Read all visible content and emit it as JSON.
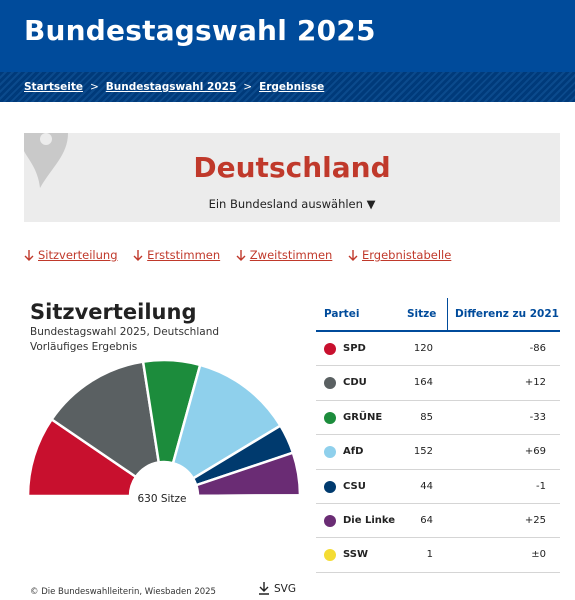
{
  "header": {
    "title": "Bundestagswahl 2025"
  },
  "breadcrumb": [
    {
      "label": "Startseite"
    },
    {
      "label": "Bundestagswahl 2025"
    },
    {
      "label": "Ergebnisse"
    }
  ],
  "breadcrumb_sep": ">",
  "region": {
    "name": "Deutschland",
    "select_label": "Ein Bundesland auswählen",
    "select_caret": "▼"
  },
  "anchors": [
    {
      "label": "Sitzverteilung"
    },
    {
      "label": "Erststimmen"
    },
    {
      "label": "Zweitstimmen"
    },
    {
      "label": "Ergebnistabelle"
    }
  ],
  "chart": {
    "title": "Sitzverteilung",
    "subtitle_line1": "Bundestagswahl 2025, Deutschland",
    "subtitle_line2": "Vorläufiges Ergebnis",
    "total_label": "630 Sitze",
    "credit": "© Die Bundeswahlleiterin, Wiesbaden 2025",
    "download_label": "SVG"
  },
  "table": {
    "headers": {
      "party": "Partei",
      "seats": "Sitze",
      "diff": "Differenz zu 2021"
    },
    "rows": [
      {
        "party": "SPD",
        "seats": "120",
        "diff": "-86",
        "color": "#c8102e"
      },
      {
        "party": "CDU",
        "seats": "164",
        "diff": "+12",
        "color": "#5a6062"
      },
      {
        "party": "GRÜNE",
        "seats": "85",
        "diff": "-33",
        "color": "#1c8c3c"
      },
      {
        "party": "AfD",
        "seats": "152",
        "diff": "+69",
        "color": "#8fd0ec"
      },
      {
        "party": "CSU",
        "seats": "44",
        "diff": "-1",
        "color": "#003a6e"
      },
      {
        "party": "Die Linke",
        "seats": "64",
        "diff": "+25",
        "color": "#6a2c74"
      },
      {
        "party": "SSW",
        "seats": "1",
        "diff": "±0",
        "color": "#f4dc33"
      }
    ]
  },
  "chart_data": {
    "type": "pie",
    "subtype": "parliament-semicircle",
    "title": "Sitzverteilung",
    "subtitle": "Bundestagswahl 2025, Deutschland — Vorläufiges Ergebnis",
    "total": 630,
    "categories": [
      "SPD",
      "CDU",
      "GRÜNE",
      "AfD",
      "CSU",
      "Die Linke",
      "SSW"
    ],
    "values": [
      120,
      164,
      85,
      152,
      44,
      64,
      1
    ],
    "colors": [
      "#c8102e",
      "#5a6062",
      "#1c8c3c",
      "#8fd0ec",
      "#003a6e",
      "#6a2c74",
      "#f4dc33"
    ]
  }
}
